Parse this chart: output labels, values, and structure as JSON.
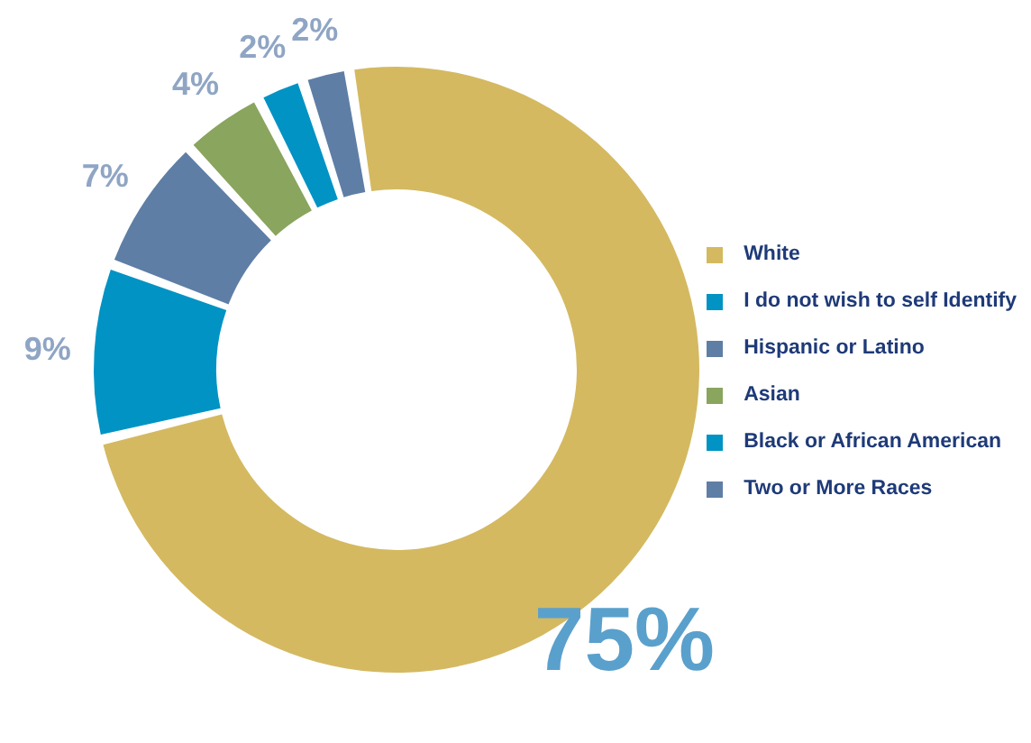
{
  "chart_data": {
    "type": "donut",
    "categories": [
      "White",
      "I do not wish to self Identify",
      "Hispanic or Latino",
      "Asian",
      "Black or African American",
      "Two or More Races"
    ],
    "values": [
      75,
      9,
      7,
      4,
      2,
      2
    ],
    "colors": [
      "#d4b961",
      "#0093c4",
      "#5e7ea6",
      "#89a55e",
      "#0093c4",
      "#5e7ea6"
    ],
    "value_labels": [
      "75%",
      "9%",
      "7%",
      "4%",
      "2%",
      "2%"
    ],
    "legend": "right"
  }
}
